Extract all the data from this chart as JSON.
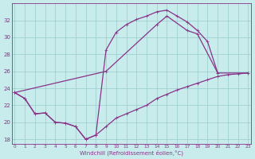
{
  "background_color": "#c8ecec",
  "line_color": "#883388",
  "grid_color": "#99cccc",
  "xlabel": "Windchill (Refroidissement éolien,°C)",
  "ylim": [
    17.5,
    34
  ],
  "xlim": [
    -0.3,
    23.3
  ],
  "yticks": [
    18,
    20,
    22,
    24,
    26,
    28,
    30,
    32
  ],
  "xticks": [
    0,
    1,
    2,
    3,
    4,
    5,
    6,
    7,
    8,
    9,
    10,
    11,
    12,
    13,
    14,
    15,
    16,
    17,
    18,
    19,
    20,
    21,
    22,
    23
  ],
  "curve1_x": [
    0,
    1,
    2,
    3,
    4,
    5,
    6,
    7,
    8,
    9,
    10,
    11,
    12,
    13,
    14,
    15,
    16,
    17,
    18,
    19,
    20
  ],
  "curve1_y": [
    23.5,
    22.8,
    21.0,
    21.1,
    20.0,
    19.9,
    19.5,
    18.0,
    18.5,
    28.5,
    30.6,
    31.5,
    32.1,
    32.5,
    33.0,
    33.2,
    32.5,
    31.8,
    30.8,
    29.5,
    25.8
  ],
  "curve2_x": [
    0,
    9,
    14,
    15,
    17,
    18,
    20,
    23
  ],
  "curve2_y": [
    23.5,
    26.0,
    31.5,
    32.5,
    30.8,
    30.4,
    25.8,
    25.8
  ],
  "curve3_x": [
    0,
    1,
    2,
    3,
    4,
    5,
    6,
    7,
    8,
    9,
    10,
    11,
    12,
    13,
    14,
    15,
    16,
    17,
    18,
    19,
    20,
    21,
    22,
    23
  ],
  "curve3_y": [
    23.5,
    22.8,
    21.0,
    21.1,
    20.0,
    19.9,
    19.5,
    18.0,
    18.5,
    19.5,
    20.5,
    21.0,
    21.5,
    22.0,
    22.8,
    23.3,
    23.8,
    24.2,
    24.6,
    25.0,
    25.4,
    25.6,
    25.7,
    25.8
  ]
}
